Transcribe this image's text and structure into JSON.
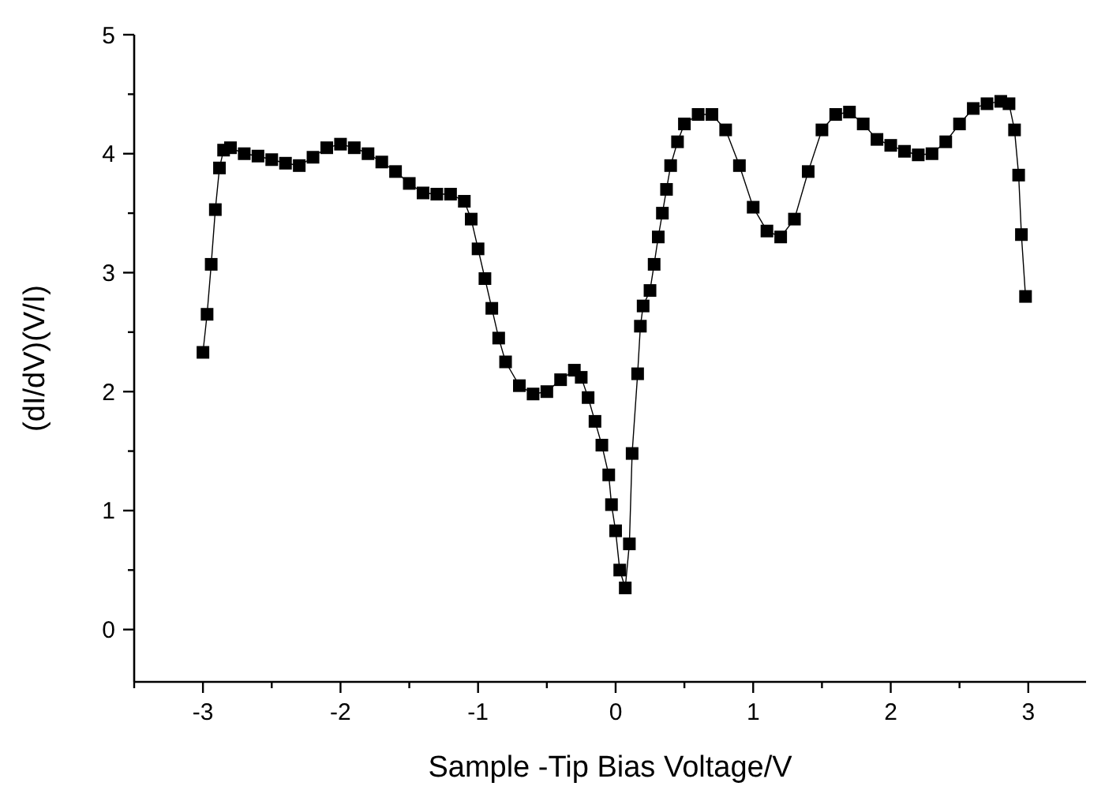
{
  "chart_data": {
    "type": "line",
    "xlabel": "Sample -Tip Bias Voltage/V",
    "ylabel": "(dI/dV)(V/I)",
    "xlim": [
      -3.5,
      3.42
    ],
    "ylim": [
      -0.44,
      5
    ],
    "xticks": [
      {
        "value": -3.5,
        "label": null
      },
      -3,
      {
        "value": -2.5,
        "label": null
      },
      -2,
      {
        "value": -1.5,
        "label": null
      },
      -1,
      {
        "value": -0.5,
        "label": null
      },
      0,
      {
        "value": 0.5,
        "label": null
      },
      1,
      {
        "value": 1.5,
        "label": null
      },
      2,
      {
        "value": 2.5,
        "label": null
      },
      3
    ],
    "yticks": [
      0,
      {
        "value": 0.5,
        "label": null
      },
      1,
      {
        "value": 1.5,
        "label": null
      },
      2,
      {
        "value": 2.5,
        "label": null
      },
      3,
      {
        "value": 3.5,
        "label": null
      },
      4,
      {
        "value": 4.5,
        "label": null
      },
      5
    ],
    "grid": false,
    "marker": "square",
    "line_style": "solid",
    "series": [
      {
        "color": "#000000",
        "x": [
          -3.0,
          -2.97,
          -2.94,
          -2.91,
          -2.88,
          -2.85,
          -2.8,
          -2.7,
          -2.6,
          -2.5,
          -2.4,
          -2.3,
          -2.2,
          -2.1,
          -2.0,
          -1.9,
          -1.8,
          -1.7,
          -1.6,
          -1.5,
          -1.4,
          -1.3,
          -1.2,
          -1.1,
          -1.05,
          -1.0,
          -0.95,
          -0.9,
          -0.85,
          -0.8,
          -0.7,
          -0.6,
          -0.5,
          -0.4,
          -0.3,
          -0.25,
          -0.2,
          -0.15,
          -0.1,
          -0.05,
          -0.03,
          0.0,
          0.03,
          0.07,
          0.1,
          0.12,
          0.16,
          0.18,
          0.2,
          0.25,
          0.28,
          0.31,
          0.34,
          0.37,
          0.4,
          0.45,
          0.5,
          0.6,
          0.7,
          0.8,
          0.9,
          1.0,
          1.1,
          1.2,
          1.3,
          1.4,
          1.5,
          1.6,
          1.7,
          1.8,
          1.9,
          2.0,
          2.1,
          2.2,
          2.3,
          2.4,
          2.5,
          2.6,
          2.7,
          2.8,
          2.86,
          2.9,
          2.93,
          2.95,
          2.98
        ],
        "values": [
          2.33,
          2.65,
          3.07,
          3.53,
          3.88,
          4.03,
          4.05,
          4.0,
          3.98,
          3.95,
          3.92,
          3.9,
          3.97,
          4.05,
          4.08,
          4.05,
          4.0,
          3.93,
          3.85,
          3.75,
          3.67,
          3.66,
          3.66,
          3.6,
          3.45,
          3.2,
          2.95,
          2.7,
          2.45,
          2.25,
          2.05,
          1.98,
          2.0,
          2.1,
          2.18,
          2.12,
          1.95,
          1.75,
          1.55,
          1.3,
          1.05,
          0.83,
          0.5,
          0.35,
          0.72,
          1.48,
          2.15,
          2.55,
          2.72,
          2.85,
          3.07,
          3.3,
          3.5,
          3.7,
          3.9,
          4.1,
          4.25,
          4.33,
          4.33,
          4.2,
          3.9,
          3.55,
          3.35,
          3.3,
          3.45,
          3.85,
          4.2,
          4.33,
          4.35,
          4.25,
          4.12,
          4.07,
          4.02,
          3.99,
          4.0,
          4.1,
          4.25,
          4.38,
          4.42,
          4.44,
          4.42,
          4.2,
          3.82,
          3.32,
          2.8
        ]
      }
    ]
  }
}
